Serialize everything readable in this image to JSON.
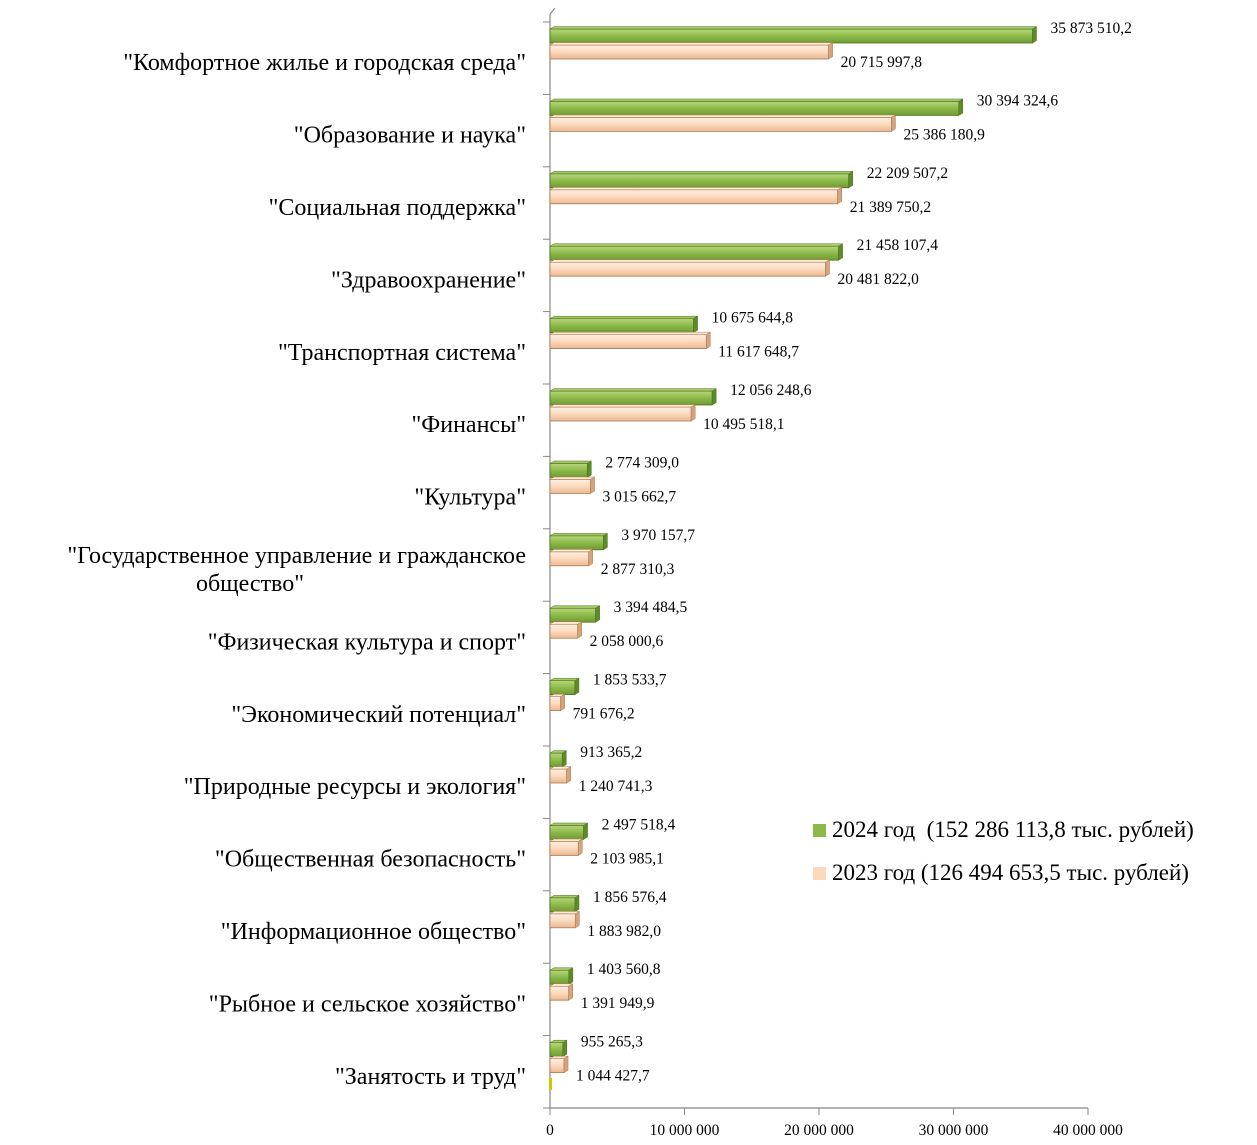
{
  "chart_data": {
    "type": "bar",
    "orientation": "horizontal",
    "categories": [
      "\"Комфортное жилье и городская среда\"",
      "\"Образование и наука\"",
      "\"Социальная поддержка\"",
      "\"Здравоохранение\"",
      "\"Транспортная система\"",
      "\"Финансы\"",
      "\"Культура\"",
      "\"Государственное управление и гражданское общество\"",
      "\"Физическая культура и спорт\"",
      "\"Экономический потенциал\"",
      "\"Природные ресурсы и экология\"",
      "\"Общественная безопасность\"",
      "\"Информационное общество\"",
      "\"Рыбное и сельское хозяйство\"",
      "\"Занятость и труд\""
    ],
    "series": [
      {
        "name": "2024 год  (152 286 113,8 тыс. рублей)",
        "color": "#8DB94A",
        "values": [
          35873510.2,
          30394324.6,
          22209507.2,
          21458107.4,
          10675644.8,
          12056248.6,
          2774309.0,
          3970157.7,
          3394484.5,
          1853533.7,
          913365.2,
          2497518.4,
          1856576.4,
          1403560.8,
          955265.3
        ],
        "labels": [
          "35 873 510,2",
          "30 394 324,6",
          "22 209 507,2",
          "21 458 107,4",
          "10 675 644,8",
          "12 056 248,6",
          "2 774 309,0",
          "3 970 157,7",
          "3 394 484,5",
          "1 853 533,7",
          "913 365,2",
          "2 497 518,4",
          "1 856 576,4",
          "1 403 560,8",
          "955 265,3"
        ]
      },
      {
        "name": "2023 год (126 494 653,5 тыс. рублей)",
        "color": "#FCD9BD",
        "values": [
          20715997.8,
          25386180.9,
          21389750.2,
          20481822.0,
          11617648.7,
          10495518.1,
          3015662.7,
          2877310.3,
          2058000.6,
          791676.2,
          1240741.3,
          2103985.1,
          1883982.0,
          1391949.9,
          1044427.7
        ],
        "labels": [
          "20 715 997,8",
          "25 386 180,9",
          "21 389 750,2",
          "20 481 822,0",
          "11 617 648,7",
          "10 495 518,1",
          "3 015 662,7",
          "2 877 310,3",
          "2 058 000,6",
          "791 676,2",
          "1 240 741,3",
          "2 103 985,1",
          "1 883 982,0",
          "1 391 949,9",
          "1 044 427,7"
        ]
      }
    ],
    "xlim": [
      0,
      40000000
    ],
    "xticks": [
      0,
      10000000,
      20000000,
      30000000,
      40000000
    ],
    "xtick_labels": [
      "0",
      "10 000 000",
      "20 000 000",
      "30 000 000",
      "40 000 000"
    ],
    "grid": false,
    "legend_position": "right"
  }
}
